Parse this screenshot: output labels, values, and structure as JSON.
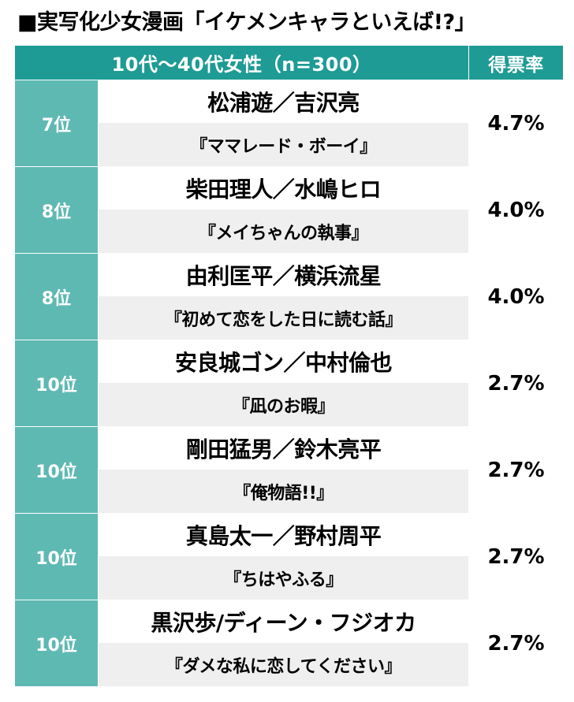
{
  "title": "■実写化少女漫画「イケメンキャラといえば!?」",
  "header": {
    "group": "10代〜40代女性（n=300）",
    "vote_label": "得票率"
  },
  "rows": [
    {
      "rank": "7位",
      "names": "松浦遊／吉沢亮",
      "work": "『ママレード・ボーイ』",
      "pct": "4.7%"
    },
    {
      "rank": "8位",
      "names": "柴田理人／水嶋ヒロ",
      "work": "『メイちゃんの執事』",
      "pct": "4.0%"
    },
    {
      "rank": "8位",
      "names": "由利匡平／横浜流星",
      "work": "『初めて恋をした日に読む話』",
      "pct": "4.0%"
    },
    {
      "rank": "10位",
      "names": "安良城ゴン／中村倫也",
      "work": "『凪のお暇』",
      "pct": "2.7%"
    },
    {
      "rank": "10位",
      "names": "剛田猛男／鈴木亮平",
      "work": "『俺物語!!』",
      "pct": "2.7%"
    },
    {
      "rank": "10位",
      "names": "真島太一／野村周平",
      "work": "『ちはやふる』",
      "pct": "2.7%"
    },
    {
      "rank": "10位",
      "names": "黒沢歩/ディーン・フジオカ",
      "work": "『ダメな私に恋してください』",
      "pct": "2.7%"
    }
  ]
}
